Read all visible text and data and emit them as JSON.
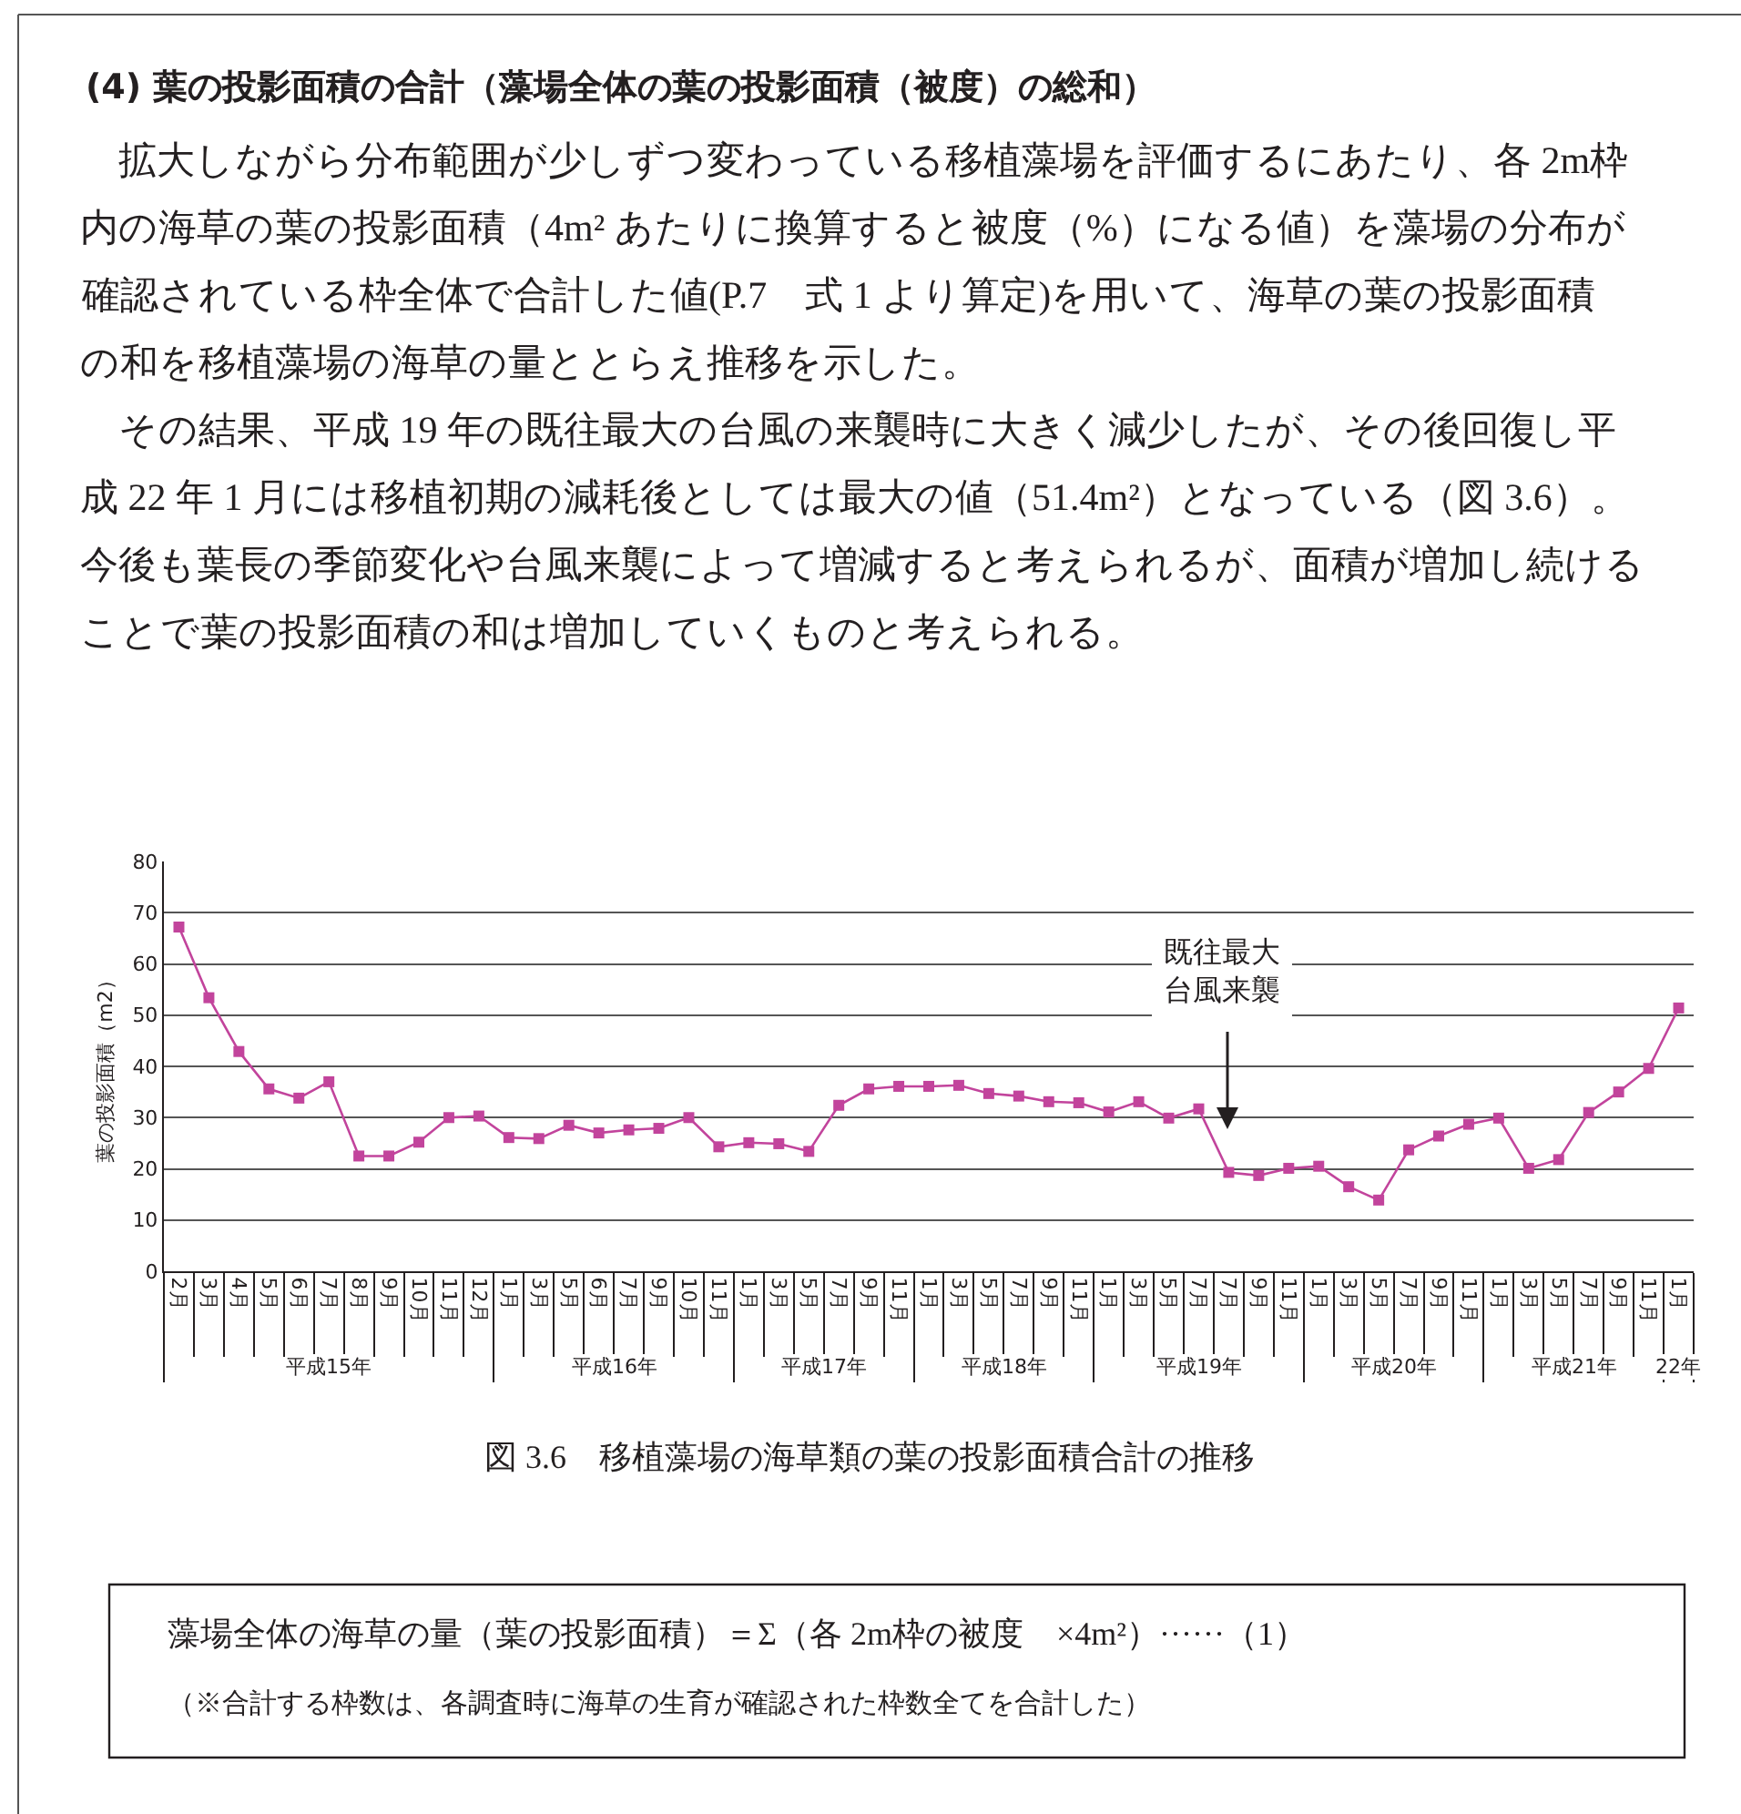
{
  "chart_data": {
    "type": "line",
    "title": "(4) 葉の投影面積の合計（藻場全体の葉の投影面積（被度）の総和）",
    "ylabel": "葉の投影面積（m2）",
    "categories": [
      "2月",
      "3月",
      "4月",
      "5月",
      "6月",
      "7月",
      "8月",
      "9月",
      "10月",
      "11月",
      "12月",
      "1月",
      "3月",
      "5月",
      "6月",
      "7月",
      "9月",
      "10月",
      "11月",
      "1月",
      "3月",
      "5月",
      "7月",
      "9月",
      "11月",
      "1月",
      "3月",
      "5月",
      "7月",
      "9月",
      "11月",
      "1月",
      "3月",
      "5月",
      "7月",
      "7月",
      "9月",
      "11月",
      "1月",
      "3月",
      "5月",
      "7月",
      "9月",
      "11月",
      "1月",
      "3月",
      "5月",
      "7月",
      "9月",
      "11月",
      "1月"
    ],
    "series": [
      {
        "color": "#c2449c",
        "values": [
          67.2,
          53.4,
          42.9,
          35.6,
          33.8,
          37,
          22.5,
          22.5,
          25.2,
          30,
          30.3,
          26.1,
          25.9,
          28.5,
          27,
          27.6,
          27.9,
          30,
          24.3,
          25.1,
          24.9,
          23.4,
          32.4,
          35.6,
          36.1,
          36.1,
          36.3,
          34.7,
          34.2,
          33.1,
          32.9,
          31.1,
          33.1,
          29.9,
          31.7,
          19.3,
          18.7,
          20.1,
          20.5,
          16.5,
          13.9,
          23.7,
          26.4,
          28.7,
          29.9,
          20.1,
          21.8,
          31,
          35,
          39.6,
          51.4
        ]
      }
    ],
    "ylim": [
      0,
      80
    ],
    "yticks": [
      0,
      10,
      20,
      30,
      40,
      50,
      60,
      70,
      80
    ],
    "grid": "y",
    "legend": false,
    "marker": "square",
    "line_style": "solid",
    "annotations": [
      "　拡大しながら分布範囲が少しずつ変わっている移植藻場を評価するにあたり、各 2m枠",
      "内の海草の葉の投影面積（4m² あたりに換算すると被度（%）になる値）を藻場の分布が",
      "確認されている枠全体で合計した値(P.7　式 1 より算定)を用いて、海草の葉の投影面積",
      "の和を移植藻場の海草の量ととらえ推移を示した。",
      "　その結果、平成 19 年の既往最大の台風の来襲時に大きく減少したが、その後回復し平",
      "成 22 年 1 月には移植初期の減耗後としては最大の値（51.4m²）となっている（図 3.6）。",
      "今後も葉長の季節変化や台風来襲によって増減すると考えられるが、面積が増加し続ける",
      "ことで葉の投影面積の和は増加していくものと考えられる。",
      "図 3.6　移植藻場の海草類の葉の投影面積合計の推移",
      "藻場全体の海草の量（葉の投影面積）＝Σ（各 2m枠の被度　×4m²）······（1）",
      "（※合計する枠数は、各調査時に海草の生育が確認された枠数全てを合計した）",
      "平成15年",
      "平成16年",
      "平成17年",
      "平成18年",
      "平成19年",
      "平成20年",
      "平成21年",
      "22年",
      "既往最大台風来襲"
    ]
  }
}
